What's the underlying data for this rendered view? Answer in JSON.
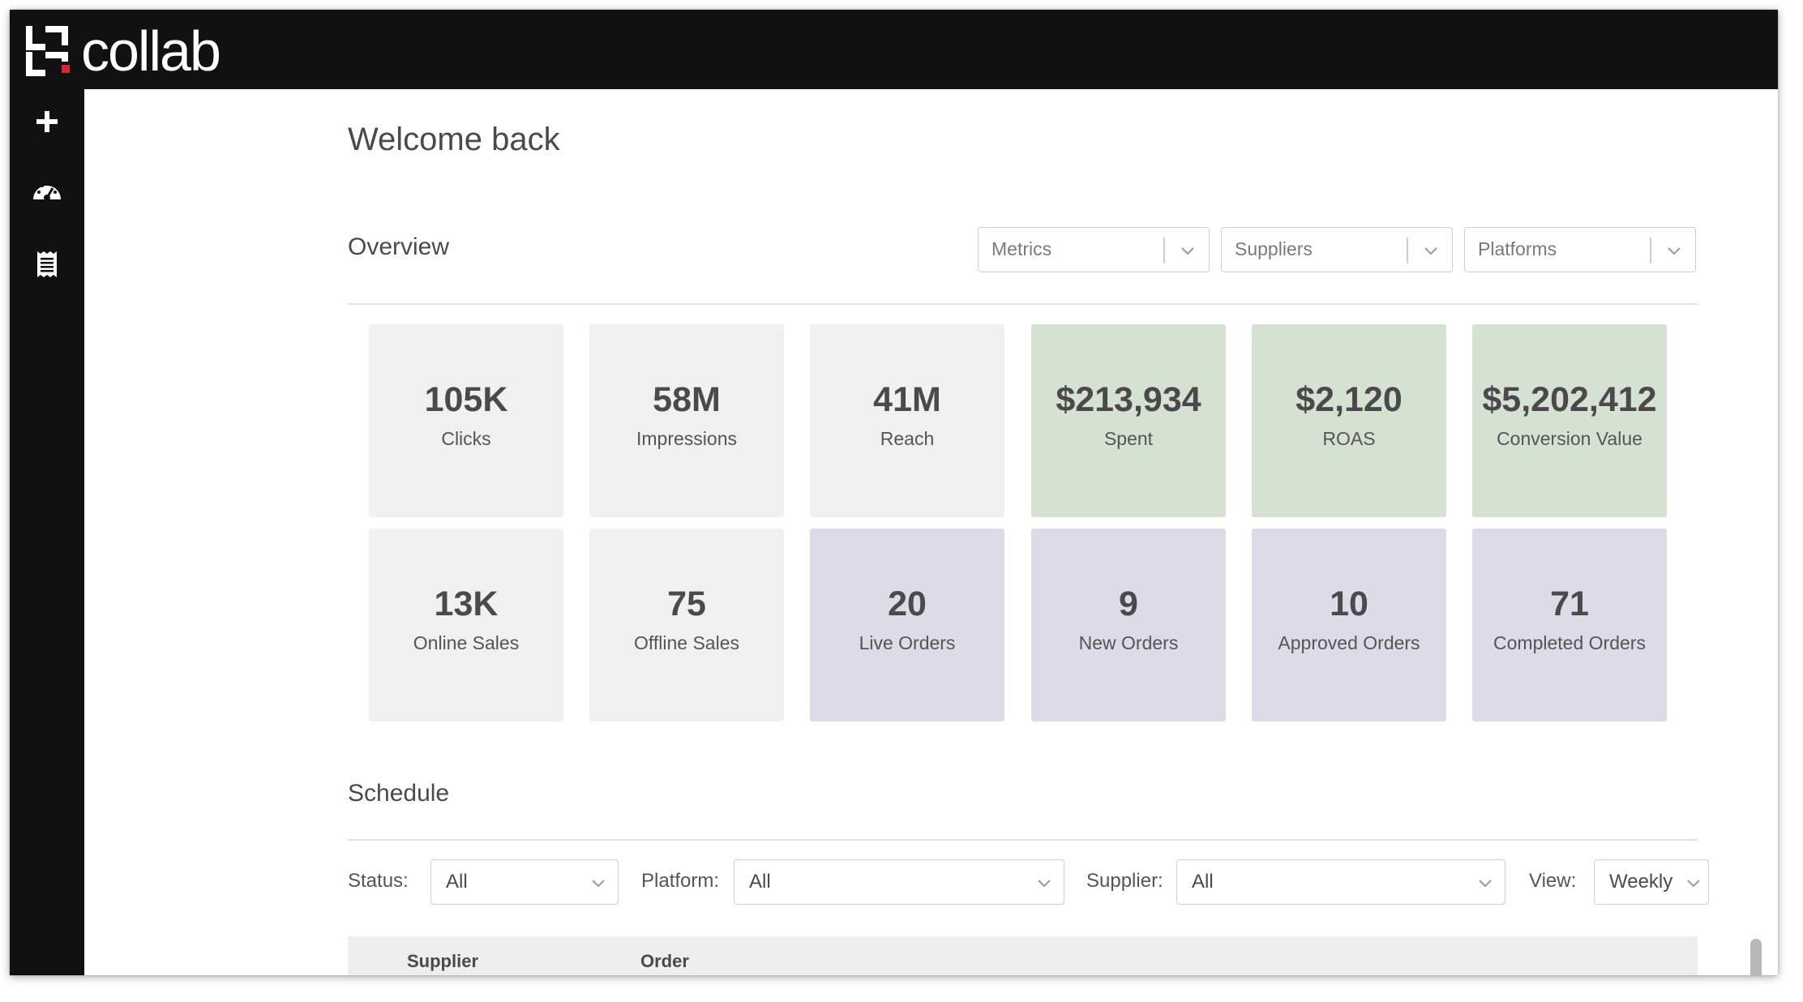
{
  "app": {
    "logo_text": "collab"
  },
  "sidebar": {
    "items": [
      {
        "icon": "plus-icon"
      },
      {
        "icon": "dashboard-gauge-icon"
      },
      {
        "icon": "receipt-icon"
      }
    ]
  },
  "page": {
    "title": "Welcome back"
  },
  "overview": {
    "title": "Overview",
    "filters": [
      {
        "placeholder": "Metrics"
      },
      {
        "placeholder": "Suppliers"
      },
      {
        "placeholder": "Platforms"
      }
    ],
    "cards": [
      {
        "value": "105K",
        "label": "Clicks",
        "color": "#f0f0f0"
      },
      {
        "value": "58M",
        "label": "Impressions",
        "color": "#f0f0f0"
      },
      {
        "value": "41M",
        "label": "Reach",
        "color": "#f0f0f0"
      },
      {
        "value": "$213,934",
        "label": "Spent",
        "color": "#d5e1d1"
      },
      {
        "value": "$2,120",
        "label": "ROAS",
        "color": "#d5e1d1"
      },
      {
        "value": "$5,202,412",
        "label": "Conversion Value",
        "color": "#d5e1d1"
      },
      {
        "value": "13K",
        "label": "Online Sales",
        "color": "#f0f0f0"
      },
      {
        "value": "75",
        "label": "Offline Sales",
        "color": "#f0f0f0"
      },
      {
        "value": "20",
        "label": "Live Orders",
        "color": "#dcdbe8"
      },
      {
        "value": "9",
        "label": "New Orders",
        "color": "#dcdbe8"
      },
      {
        "value": "10",
        "label": "Approved Orders",
        "color": "#dcdbe8"
      },
      {
        "value": "71",
        "label": "Completed Orders",
        "color": "#dcdbe8"
      }
    ]
  },
  "schedule": {
    "title": "Schedule",
    "filters": {
      "status": {
        "label": "Status:",
        "value": "All"
      },
      "platform": {
        "label": "Platform:",
        "value": "All"
      },
      "supplier": {
        "label": "Supplier:",
        "value": "All"
      },
      "view": {
        "label": "View:",
        "value": "Weekly"
      }
    },
    "table": {
      "columns": [
        "Supplier",
        "Order"
      ]
    }
  },
  "colors": {
    "topbar": "#111111",
    "logo_accent": "#d6243b"
  }
}
